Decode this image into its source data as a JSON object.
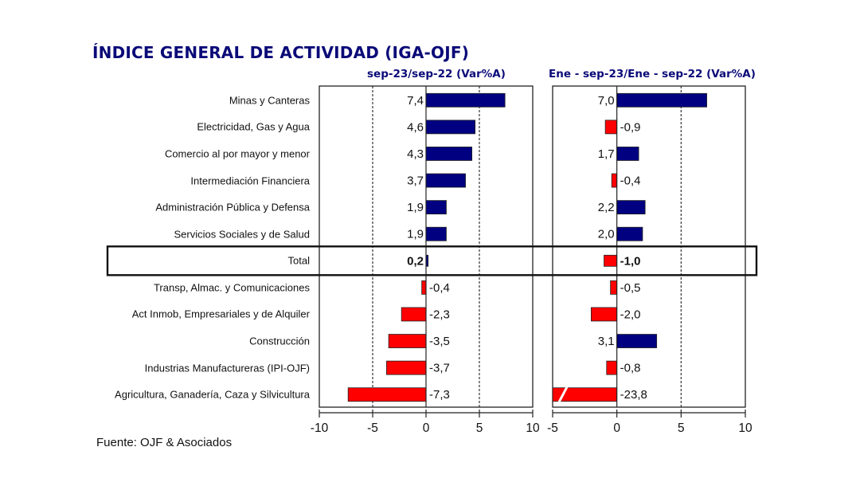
{
  "title": "ÍNDICE GENERAL DE ACTIVIDAD (IGA-OJF)",
  "source": "Fuente: OJF & Asociados",
  "colors": {
    "positive": "#000080",
    "negative": "#ff0000",
    "title": "#0a0a78"
  },
  "chart_data": [
    {
      "type": "bar",
      "orientation": "horizontal",
      "title": "sep-23/sep-22 (Var%A)",
      "categories": [
        "Minas y Canteras",
        "Electricidad, Gas y Agua",
        "Comercio al por mayor y menor",
        "Intermediación Financiera",
        "Administración Pública y Defensa",
        "Servicios Sociales y de Salud",
        "Total",
        "Transp, Almac. y Comunicaciones",
        "Act Inmob, Empresariales y de Alquiler",
        "Construcción",
        "Industrias Manufactureras (IPI-OJF)",
        "Agricultura, Ganadería, Caza y Silvicultura"
      ],
      "values": [
        7.4,
        4.6,
        4.3,
        3.7,
        1.9,
        1.9,
        0.2,
        -0.4,
        -2.3,
        -3.5,
        -3.7,
        -7.3
      ],
      "labels": [
        "7,4",
        "4,6",
        "4,3",
        "3,7",
        "1,9",
        "1,9",
        "0,2",
        "-0,4",
        "-2,3",
        "-3,5",
        "-3,7",
        "-7,3"
      ],
      "xlim": [
        -10,
        10
      ],
      "xticks": [
        -10,
        -5,
        0,
        5,
        10
      ],
      "xtick_labels": [
        "-10",
        "-5",
        "0",
        "5",
        "10"
      ],
      "grid": "vertical dashed at -5 and 5",
      "highlight_row": "Total"
    },
    {
      "type": "bar",
      "orientation": "horizontal",
      "title": "Ene - sep-23/Ene - sep-22 (Var%A)",
      "categories": [
        "Minas y Canteras",
        "Electricidad, Gas y Agua",
        "Comercio al por mayor y menor",
        "Intermediación Financiera",
        "Administración Pública y Defensa",
        "Servicios Sociales y de Salud",
        "Total",
        "Transp, Almac. y Comunicaciones",
        "Act Inmob, Empresariales y de Alquiler",
        "Construcción",
        "Industrias Manufactureras (IPI-OJF)",
        "Agricultura, Ganadería, Caza y Silvicultura"
      ],
      "values": [
        7.0,
        -0.9,
        1.7,
        -0.4,
        2.2,
        2.0,
        -1.0,
        -0.5,
        -2.0,
        3.1,
        -0.8,
        -23.8
      ],
      "labels": [
        "7,0",
        "-0,9",
        "1,7",
        "-0,4",
        "2,2",
        "2,0",
        "-1,0",
        "-0,5",
        "-2,0",
        "3,1",
        "-0,8",
        "-23,8"
      ],
      "xlim": [
        -5,
        10
      ],
      "xticks": [
        -5,
        0,
        5,
        10
      ],
      "xtick_labels": [
        "-5",
        "0",
        "5",
        "10"
      ],
      "grid": "vertical dashed at 5",
      "truncated_bars": [
        "Agricultura, Ganadería, Caza y Silvicultura"
      ],
      "highlight_row": "Total"
    }
  ]
}
